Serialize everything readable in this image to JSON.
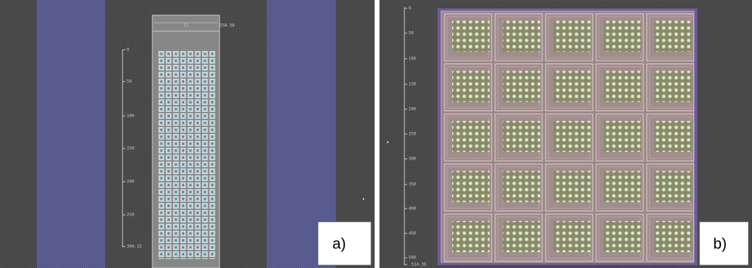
{
  "panel_a": {
    "label": "a)",
    "ruler_labels": [
      "0",
      "50",
      "100",
      "150",
      "200",
      "250",
      "300.15"
    ],
    "width_label": "52",
    "extent_label": "258.58"
  },
  "panel_b": {
    "label": "b)",
    "ruler_labels": [
      "0",
      "50",
      "100",
      "150",
      "200",
      "250",
      "300",
      "350",
      "400",
      "450",
      "500",
      "514.36"
    ]
  }
}
